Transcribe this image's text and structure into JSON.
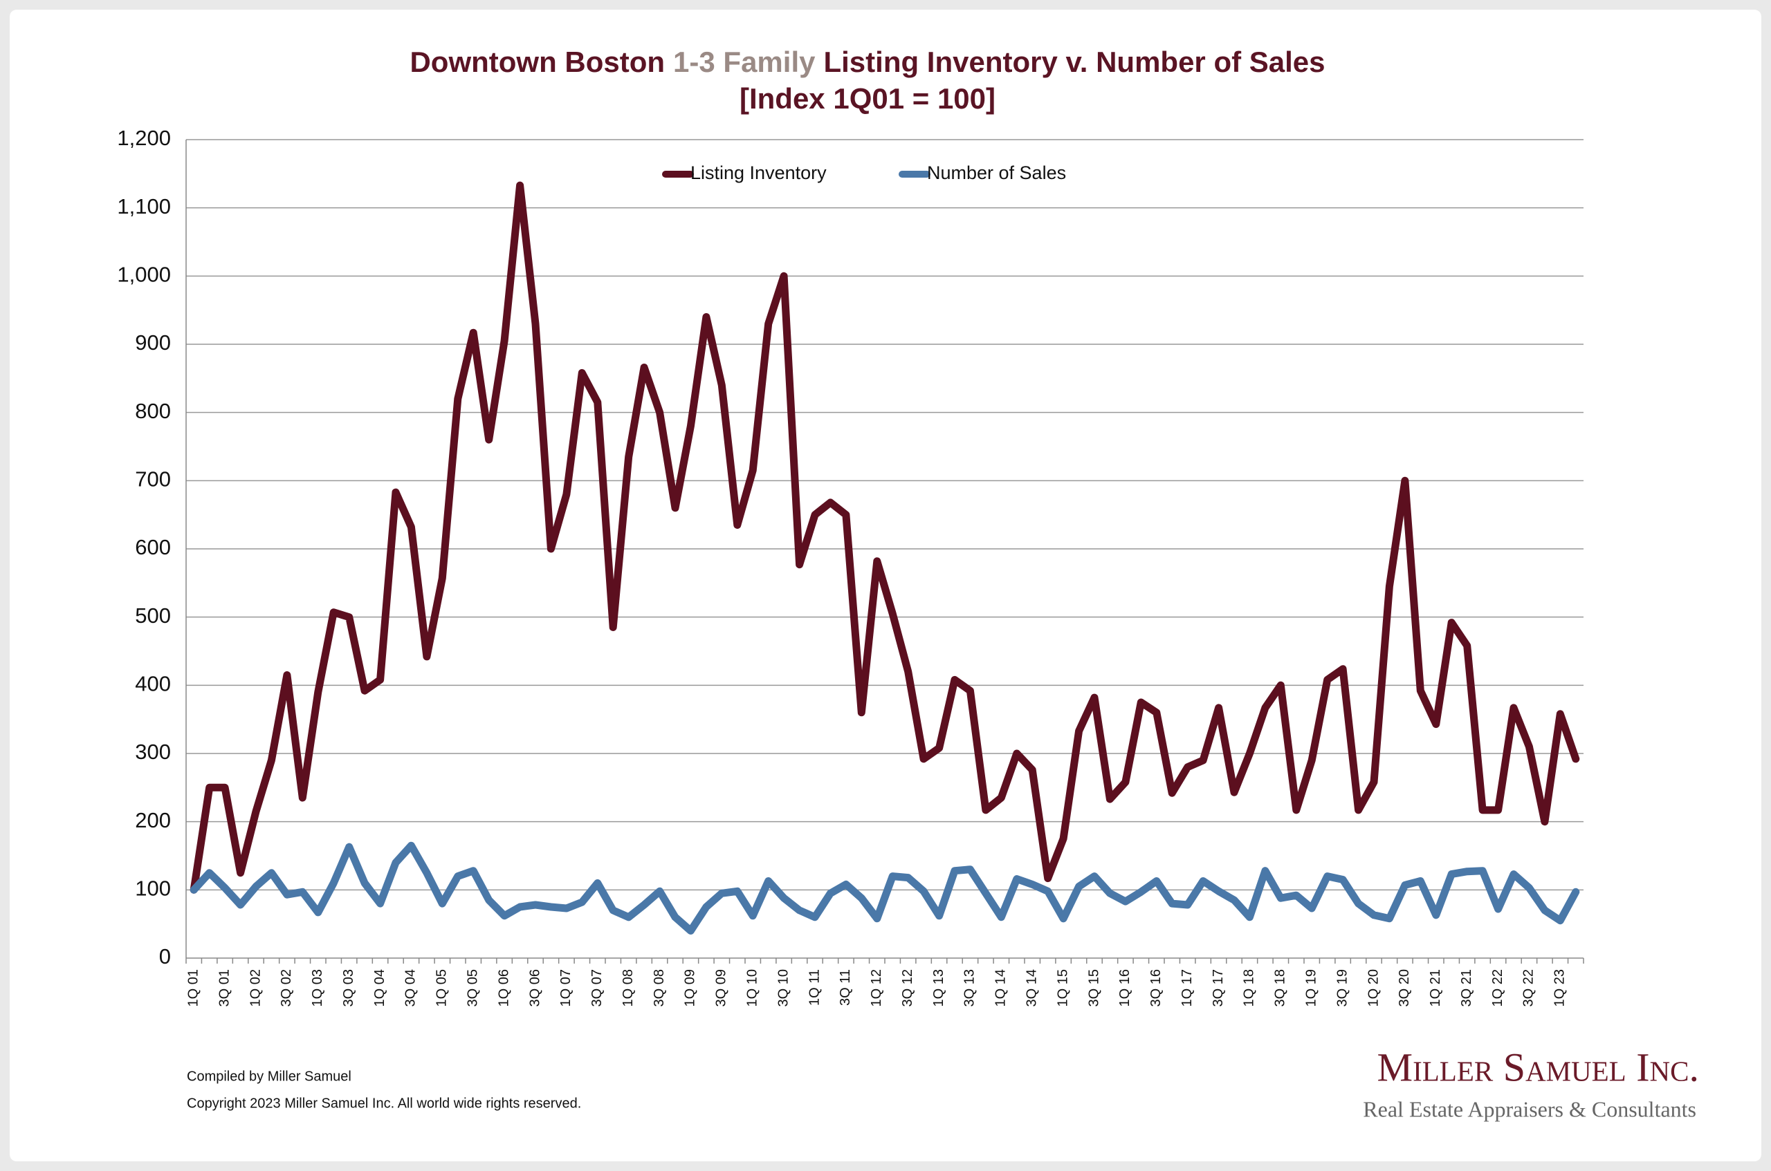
{
  "chart_data": {
    "type": "line",
    "title_parts": [
      {
        "text": "Downtown Boston",
        "color": "#5a1424"
      },
      {
        "text": "1-3 Family",
        "color": "#9a8a85"
      },
      {
        "text": "Listing Inventory v. Number of Sales",
        "color": "#5a1424"
      }
    ],
    "subtitle": "[Index 1Q01 = 100]",
    "categories": [
      "1Q 01",
      null,
      "3Q 01",
      null,
      "1Q 02",
      null,
      "3Q 02",
      null,
      "1Q 03",
      null,
      "3Q 03",
      null,
      "1Q 04",
      null,
      "3Q 04",
      null,
      "1Q 05",
      null,
      "3Q 05",
      null,
      "1Q 06",
      null,
      "3Q 06",
      null,
      "1Q 07",
      null,
      "3Q 07",
      null,
      "1Q 08",
      null,
      "3Q 08",
      null,
      "1Q 09",
      null,
      "3Q 09",
      null,
      "1Q 10",
      null,
      "3Q 10",
      null,
      "1Q 11",
      null,
      "3Q 11",
      null,
      "1Q 12",
      null,
      "3Q 12",
      null,
      "1Q 13",
      null,
      "3Q 13",
      null,
      "1Q 14",
      null,
      "3Q 14",
      null,
      "1Q 15",
      null,
      "3Q 15",
      null,
      "1Q 16",
      null,
      "3Q 16",
      null,
      "1Q 17",
      null,
      "3Q 17",
      null,
      "1Q 18",
      null,
      "3Q 18",
      null,
      "1Q 19",
      null,
      "3Q 19",
      null,
      "1Q 20",
      null,
      "3Q 20",
      null,
      "1Q 21",
      null,
      "3Q 21",
      null,
      "1Q 22",
      null,
      "3Q 22",
      null,
      "1Q 23",
      null
    ],
    "series": [
      {
        "name": "Listing Inventory",
        "color": "#5c0f1f",
        "values": [
          100,
          250,
          250,
          125,
          215,
          290,
          415,
          235,
          390,
          507,
          500,
          392,
          408,
          683,
          632,
          442,
          557,
          820,
          917,
          760,
          905,
          1133,
          930,
          600,
          680,
          858,
          815,
          485,
          735,
          866,
          800,
          660,
          780,
          940,
          840,
          635,
          715,
          930,
          1000,
          577,
          650,
          668,
          650,
          360,
          582,
          505,
          420,
          292,
          308,
          408,
          392,
          217,
          235,
          300,
          276,
          117,
          175,
          333,
          382,
          233,
          258,
          375,
          360,
          242,
          280,
          290,
          367,
          243,
          300,
          367,
          400,
          217,
          290,
          408,
          424,
          217,
          258,
          545,
          700,
          392,
          343,
          492,
          458,
          217,
          217,
          367,
          310,
          200,
          358,
          292
        ]
      },
      {
        "name": "Number of Sales",
        "color": "#4a78a8",
        "values": [
          100,
          125,
          103,
          78,
          105,
          125,
          93,
          97,
          67,
          110,
          163,
          110,
          80,
          140,
          165,
          125,
          80,
          120,
          128,
          85,
          62,
          75,
          78,
          75,
          73,
          82,
          110,
          70,
          60,
          78,
          98,
          60,
          40,
          75,
          95,
          98,
          62,
          113,
          88,
          70,
          60,
          95,
          108,
          88,
          58,
          120,
          118,
          98,
          62,
          128,
          130,
          95,
          60,
          116,
          108,
          98,
          58,
          105,
          120,
          95,
          83,
          97,
          113,
          80,
          78,
          113,
          98,
          85,
          60,
          128,
          88,
          92,
          73,
          120,
          115,
          80,
          63,
          58,
          107,
          113,
          63,
          123,
          127,
          128,
          72,
          123,
          103,
          70,
          55,
          97
        ]
      }
    ],
    "ylim": [
      0,
      1200
    ],
    "yticks": [
      0,
      100,
      200,
      300,
      400,
      500,
      600,
      700,
      800,
      900,
      {
        "value": 1000,
        "label": "1,000"
      },
      {
        "value": 1100,
        "label": "1,100"
      },
      {
        "value": 1200,
        "label": "1,200"
      }
    ],
    "grid": true,
    "legend": "top",
    "footnotes": [
      "Compiled by Miller Samuel",
      "Copyright 2023 Miller Samuel Inc.  All world wide rights reserved."
    ],
    "logo": {
      "name": "Miller Samuel Inc.",
      "tagline": "Real Estate Appraisers & Consultants"
    }
  }
}
